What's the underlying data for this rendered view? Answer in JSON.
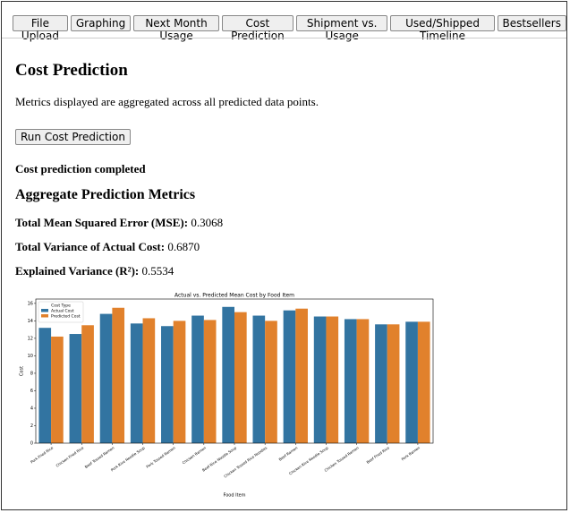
{
  "tabs": [
    "File Upload",
    "Graphing",
    "Next Month Usage",
    "Cost Prediction",
    "Shipment vs. Usage",
    "Used/Shipped Timeline",
    "Bestsellers"
  ],
  "page": {
    "title": "Cost Prediction",
    "description": "Metrics displayed are aggregated across all predicted data points.",
    "button": "Run Cost Prediction",
    "status": "Cost prediction completed",
    "metrics_title": "Aggregate Prediction Metrics",
    "metrics": [
      {
        "label": "Total Mean Squared Error (MSE):",
        "value": "0.3068"
      },
      {
        "label": "Total Variance of Actual Cost:",
        "value": "0.6870"
      },
      {
        "label": "Explained Variance (R²):",
        "value": "0.5534"
      }
    ]
  },
  "chart_data": {
    "type": "bar",
    "title": "Actual vs. Predicted Mean Cost by Food Item",
    "x_label": "Food Item",
    "y_label": "Cost",
    "categories": [
      "Pork Fried Rice",
      "Chicken Fried Rice",
      "Beef Tossed Ramen",
      "Pork Rice Noodle Soup",
      "Pork Tossed Ramen",
      "Chicken Ramen",
      "Beef Rice Noodle Soup",
      "Chicken Tossed Rice Noodles",
      "Beef Ramen",
      "Chicken Rice Noodle Soup",
      "Chicken Tossed Ramen",
      "Beef Fried Rice",
      "Pork Ramen"
    ],
    "legend_title": "Cost Type",
    "legend": "upper left",
    "series": [
      {
        "name": "Actual Cost",
        "color": "#3274a1",
        "values": [
          13.2,
          12.5,
          14.8,
          13.7,
          13.4,
          14.6,
          15.6,
          14.6,
          15.2,
          14.5,
          14.2,
          13.6,
          13.9
        ]
      },
      {
        "name": "Predicted Cost",
        "color": "#e1812c",
        "values": [
          12.2,
          13.5,
          15.5,
          14.3,
          14.0,
          14.1,
          15.0,
          14.0,
          15.4,
          14.5,
          14.2,
          13.6,
          13.9
        ]
      }
    ],
    "ylim": [
      0,
      16.5
    ],
    "yticks": [
      0,
      2,
      4,
      6,
      8,
      10,
      12,
      14,
      16
    ]
  }
}
